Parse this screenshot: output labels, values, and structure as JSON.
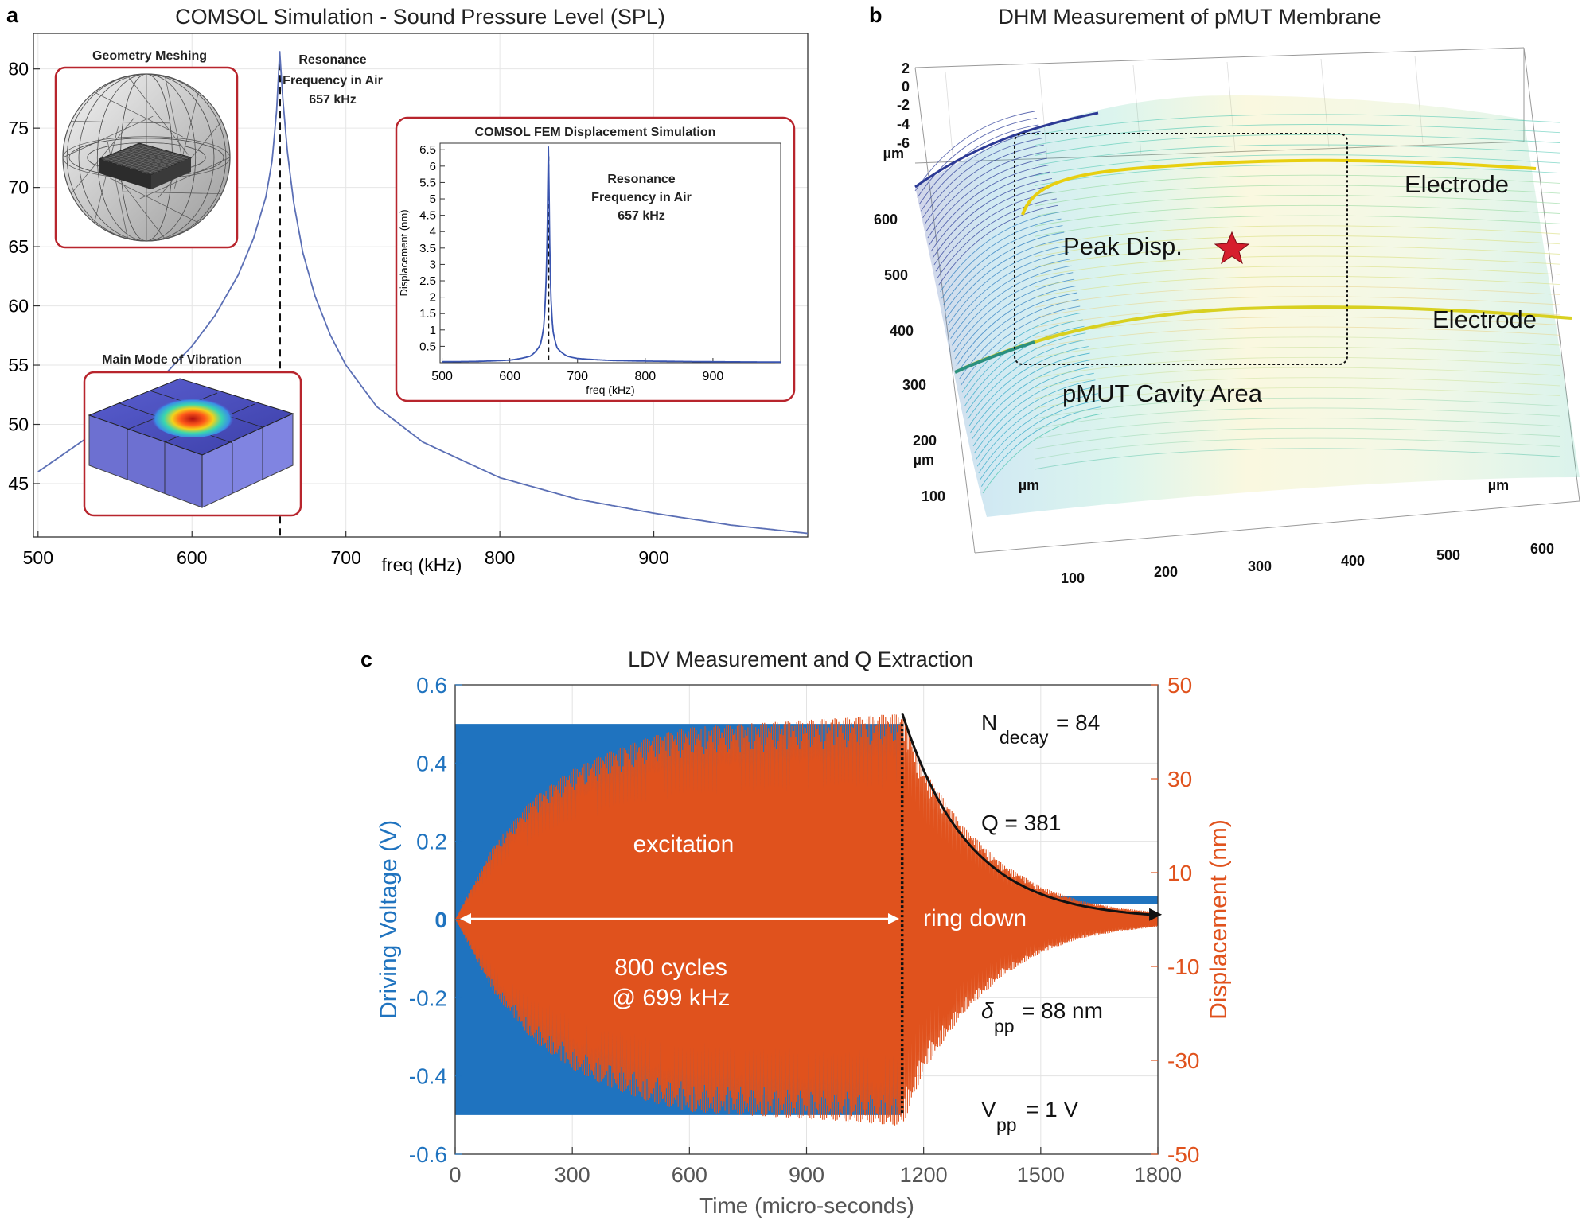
{
  "panel_a": {
    "letter": "a",
    "title": "COMSOL Simulation - Sound Pressure Level (SPL)",
    "xlabel": "freq (kHz)",
    "inset_mesh_title": "Geometry Meshing",
    "inset_mode_title": "Main Mode of Vibration",
    "resonance_label": [
      "Resonance",
      "Frequency in Air",
      "657 kHz"
    ],
    "inset_fem": {
      "title": "COMSOL FEM Displacement Simulation",
      "xlabel": "freq (kHz)",
      "ylabel": "Displacement (nm)",
      "resonance_label": [
        "Resonance",
        "Frequency in Air",
        "657 kHz"
      ]
    }
  },
  "panel_b": {
    "letter": "b",
    "title": "DHM Measurement of pMUT Membrane",
    "z_ticks": [
      "2",
      "0",
      "-2",
      "-4",
      "-6"
    ],
    "z_unit": "µm",
    "y_ticks": [
      "600",
      "500",
      "400",
      "300",
      "200",
      "100"
    ],
    "y_unit": "µm",
    "x_ticks": [
      "100",
      "200",
      "300",
      "400",
      "500",
      "600"
    ],
    "x_unit_left": "µm",
    "x_unit_right": "µm",
    "annotations": {
      "electrode_top": "Electrode",
      "electrode_bottom": "Electrode",
      "peak": "Peak Disp.",
      "cavity": "pMUT Cavity Area"
    }
  },
  "panel_c": {
    "letter": "c",
    "title": "LDV Measurement and Q Extraction",
    "xlabel": "Time (micro-seconds)",
    "ylabel_left": "Driving Voltage (V)",
    "ylabel_right": "Displacement (nm)",
    "annotations": {
      "excitation": "excitation",
      "ring_down": "ring down",
      "cycles_line1": "800 cycles",
      "cycles_line2": "@ 699 kHz",
      "n_decay_main": "N",
      "n_decay_sub": "decay",
      "n_decay_value": "= 84",
      "q": "Q = 381",
      "delta_main": "δ",
      "delta_sub": "pp",
      "delta_value": "= 88 nm",
      "vpp_main": "V",
      "vpp_sub": "pp",
      "vpp_value": "= 1 V"
    }
  },
  "chart_data": [
    {
      "type": "line",
      "title": "COMSOL Simulation - Sound Pressure Level (SPL)",
      "xlabel": "freq (kHz)",
      "ylabel": "",
      "xlim": [
        497,
        1000
      ],
      "ylim": [
        40.5,
        83
      ],
      "xticks": [
        500,
        600,
        700,
        800,
        900
      ],
      "yticks": [
        45,
        50,
        55,
        60,
        65,
        70,
        75,
        80
      ],
      "grid": true,
      "resonance_x": 657,
      "series": [
        {
          "color": "#5b6fb5",
          "x": [
            500,
            520,
            540,
            560,
            580,
            600,
            615,
            630,
            640,
            648,
            652,
            655,
            657,
            659,
            662,
            666,
            672,
            680,
            690,
            700,
            720,
            750,
            800,
            850,
            900,
            950,
            1000
          ],
          "y": [
            46.0,
            47.8,
            49.6,
            51.6,
            53.9,
            56.6,
            59.2,
            62.6,
            65.7,
            69.2,
            72.2,
            76.5,
            81.5,
            77.5,
            73.0,
            68.8,
            64.5,
            60.8,
            57.5,
            55.0,
            51.5,
            48.5,
            45.5,
            43.7,
            42.5,
            41.5,
            40.8
          ]
        }
      ]
    },
    {
      "type": "line",
      "title": "COMSOL FEM Displacement Simulation",
      "xlabel": "freq (kHz)",
      "ylabel": "Displacement (nm)",
      "xlim": [
        497,
        1000
      ],
      "ylim": [
        0,
        6.7
      ],
      "xticks": [
        500,
        600,
        700,
        800,
        900
      ],
      "yticks": [
        0.5,
        1,
        1.5,
        2,
        2.5,
        3,
        3.5,
        4,
        4.5,
        5,
        5.5,
        6,
        6.5
      ],
      "resonance_x": 657,
      "series": [
        {
          "color": "#3a55b0",
          "x": [
            500,
            550,
            600,
            630,
            645,
            650,
            653,
            655,
            656,
            657,
            658,
            659,
            661,
            664,
            670,
            685,
            700,
            750,
            800,
            900,
            1000
          ],
          "y": [
            0.03,
            0.04,
            0.08,
            0.2,
            0.55,
            1.1,
            2.2,
            3.7,
            5.2,
            6.6,
            5.2,
            3.6,
            1.9,
            0.95,
            0.45,
            0.2,
            0.13,
            0.07,
            0.05,
            0.03,
            0.02
          ]
        }
      ]
    },
    {
      "type": "line",
      "title": "LDV Measurement and Q Extraction",
      "xlabel": "Time (micro-seconds)",
      "ylabel": "Driving Voltage (V)",
      "ylabel_right": "Displacement (nm)",
      "xlim": [
        0,
        1800
      ],
      "ylim": [
        -0.6,
        0.6
      ],
      "ylim_right": [
        -50,
        50
      ],
      "xticks": [
        0,
        300,
        600,
        900,
        1200,
        1500,
        1800
      ],
      "yticks": [
        -0.6,
        -0.4,
        -0.2,
        0,
        0.2,
        0.4,
        0.6
      ],
      "yticks_right": [
        -50,
        -30,
        -10,
        10,
        30,
        50
      ],
      "grid": true,
      "excitation_end_us": 1145,
      "series": [
        {
          "color": "#1f73bf",
          "axis": "left",
          "x": [
            0,
            1145,
            1146,
            1800
          ],
          "upper": [
            0.5,
            0.5,
            0.06,
            0.06
          ],
          "lower": [
            -0.5,
            -0.5,
            0.04,
            0.04
          ]
        },
        {
          "color": "#e0521d",
          "axis": "right",
          "x": [
            0,
            100,
            200,
            300,
            400,
            500,
            600,
            800,
            1000,
            1145,
            1200,
            1300,
            1400,
            1500,
            1600,
            1700,
            1800
          ],
          "envelope": [
            0,
            16,
            26,
            32,
            36,
            39,
            41,
            42,
            43,
            44,
            32,
            20,
            12,
            7,
            4,
            2.5,
            1.5
          ]
        }
      ]
    }
  ]
}
